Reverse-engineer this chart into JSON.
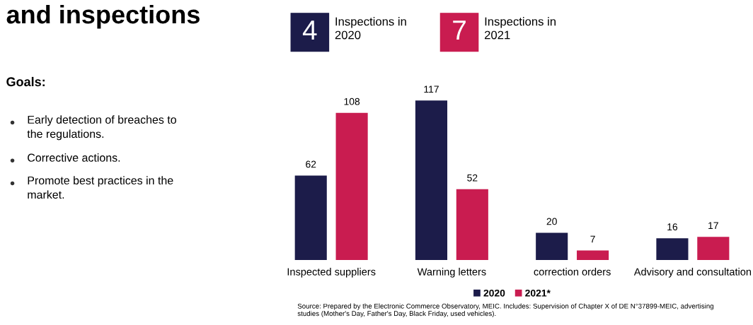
{
  "chart_data": {
    "type": "bar",
    "title": "and inspections",
    "categories": [
      "Inspected suppliers",
      "Warning letters",
      "correction orders",
      "Advisory and consultation"
    ],
    "series": [
      {
        "name": "2020",
        "color": "#1c1c4a",
        "values": [
          62,
          117,
          20,
          16
        ]
      },
      {
        "name": "2021*",
        "color": "#c91c50",
        "values": [
          108,
          52,
          7,
          17
        ]
      }
    ],
    "data_labels": true,
    "legend": "bottom",
    "grid": false,
    "annotations": [
      "Goals:",
      "Early detection of breaches to\nthe regulations.",
      "Corrective actions.",
      "Promote best practices in the\nmarket.",
      "4",
      "Inspections in\n2020",
      "7",
      "Inspections in\n2021",
      "Source: Prepared by the Electronic Commerce Observatory, MEIC. Includes: Supervision of Chapter X of DE N°37899-MEIC, advertising\nstudies (Mother's Day, Father's Day, Black Friday, used vehicles)."
    ]
  }
}
